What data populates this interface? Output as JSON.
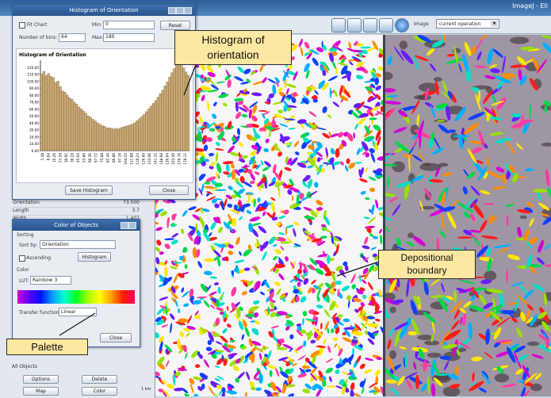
{
  "window": {
    "title_right": "ImageJ - Ell"
  },
  "toolbar": {
    "image_label": "Image",
    "image_select_value": "current operation",
    "icons": [
      "magnifier-icon",
      "book-icon",
      "window-icon",
      "chart-icon",
      "globe-icon"
    ]
  },
  "left_panel": {
    "rows": [
      {
        "label": "Orientation",
        "value": "73.000"
      },
      {
        "label": "Length",
        "value": "3.7"
      },
      {
        "label": "Width",
        "value": "1.407"
      }
    ]
  },
  "histogram_dialog": {
    "title": "Histogram of Orientation",
    "fit_chart_label": "Fit Chart",
    "min_label": "Min:",
    "min_value": "0",
    "reset_label": "Reset",
    "bins_label": "Number of bins:",
    "bins_value": "64",
    "max_label": "Max:",
    "max_value": "180",
    "chart_title": "Histogram of Orientation",
    "save_button": "Save Histogram",
    "close_button": "Close"
  },
  "chart_data": {
    "type": "bar",
    "title": "Histogram of Orientation",
    "ylim": [
      0,
      130
    ],
    "yticks": [
      "0.00",
      "10.00",
      "20.00",
      "30.00",
      "40.00",
      "50.00",
      "60.00",
      "70.00",
      "80.00",
      "90.00",
      "100.00",
      "110.00",
      "120.00"
    ],
    "xticks": [
      "1.48",
      "8.84",
      "16.20",
      "23.56",
      "30.92",
      "38.28",
      "45.64",
      "53.00",
      "60.36",
      "67.72",
      "75.08",
      "82.44",
      "89.80",
      "97.16",
      "104.52",
      "111.88",
      "119.24",
      "126.60",
      "133.96",
      "141.32",
      "148.68",
      "156.04",
      "163.40",
      "170.76",
      "178.12"
    ],
    "values": [
      110,
      114,
      108,
      111,
      107,
      105,
      98,
      100,
      92,
      86,
      84,
      80,
      76,
      74,
      70,
      67,
      63,
      60,
      57,
      54,
      50,
      48,
      45,
      43,
      40,
      38,
      36,
      35,
      33,
      33,
      32,
      31,
      32,
      31,
      33,
      34,
      35,
      36,
      37,
      38,
      40,
      43,
      46,
      49,
      52,
      56,
      60,
      64,
      68,
      72,
      77,
      82,
      87,
      93,
      99,
      106,
      112,
      118,
      123,
      127,
      125,
      119,
      113,
      108
    ],
    "colors": {
      "bar": "#c9a873",
      "bar_edge": "#6b5231"
    }
  },
  "color_dialog": {
    "title": "Color of Objects",
    "sorting_label": "Sorting",
    "sort_by_label": "Sort by:",
    "sort_by_value": "Orientation",
    "ascending_label": "Ascending",
    "histogram_button": "Histogram",
    "color_label": "Color",
    "lut_label": "LUT:",
    "lut_value": "Rainbow 3",
    "transfer_label": "Transfer function:",
    "transfer_value": "Linear",
    "close_button": "Close"
  },
  "all_objects": {
    "title": "All Objects",
    "buttons": [
      "Options",
      "Delete",
      "Map",
      "Color"
    ]
  },
  "scale_bar_text": "1 km",
  "callouts": {
    "histogram": "Histogram of orientation",
    "depositional": "Depositional boundary",
    "palette": "Palette"
  }
}
